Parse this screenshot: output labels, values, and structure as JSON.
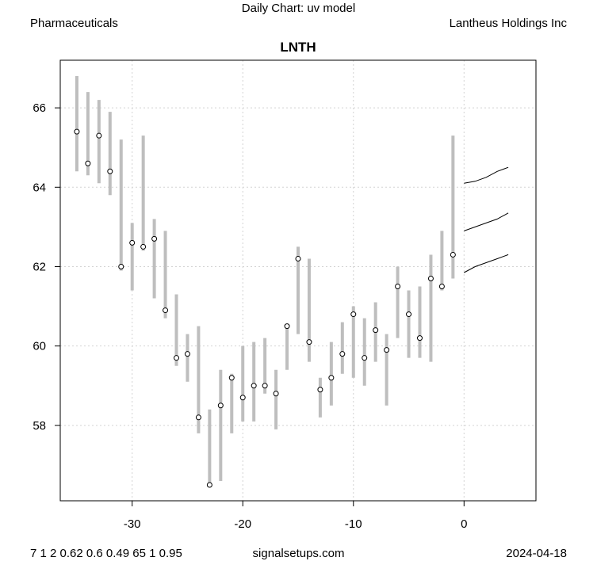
{
  "header": {
    "subtitle": "Daily Chart: uv model",
    "left_label": "Pharmaceuticals",
    "right_label": "Lantheus Holdings Inc"
  },
  "footer": {
    "params": "7 1 2 0.62 0.6 0.49 65 1 0.95",
    "site": "signalsetups.com",
    "date": "2024-04-18"
  },
  "chart_data": {
    "type": "range-dot",
    "title": "LNTH",
    "xlim": [
      -36.5,
      6.5
    ],
    "ylim": [
      56.1,
      67.2
    ],
    "x_ticks": [
      -30,
      -20,
      -10,
      0
    ],
    "y_ticks": [
      58,
      60,
      62,
      64,
      66
    ],
    "grid": true,
    "colors": {
      "range": "#bebebe",
      "point_fill": "#ffffff",
      "point_stroke": "#000000",
      "forecast": "#000000",
      "grid": "#d3d3d3"
    },
    "bars": [
      {
        "x": -35,
        "low": 64.4,
        "high": 66.8,
        "close": 65.4
      },
      {
        "x": -34,
        "low": 64.3,
        "high": 66.4,
        "close": 64.6
      },
      {
        "x": -33,
        "low": 64.1,
        "high": 66.2,
        "close": 65.3
      },
      {
        "x": -32,
        "low": 63.8,
        "high": 65.9,
        "close": 64.4
      },
      {
        "x": -31,
        "low": 61.9,
        "high": 65.2,
        "close": 62.0
      },
      {
        "x": -30,
        "low": 61.4,
        "high": 63.1,
        "close": 62.6
      },
      {
        "x": -29,
        "low": 62.4,
        "high": 65.3,
        "close": 62.5
      },
      {
        "x": -28,
        "low": 61.2,
        "high": 63.2,
        "close": 62.7
      },
      {
        "x": -27,
        "low": 60.7,
        "high": 62.9,
        "close": 60.9
      },
      {
        "x": -26,
        "low": 59.5,
        "high": 61.3,
        "close": 59.7
      },
      {
        "x": -25,
        "low": 59.1,
        "high": 60.3,
        "close": 59.8
      },
      {
        "x": -24,
        "low": 57.8,
        "high": 60.5,
        "close": 58.2
      },
      {
        "x": -23,
        "low": 56.5,
        "high": 58.4,
        "close": 56.5
      },
      {
        "x": -22,
        "low": 56.6,
        "high": 59.4,
        "close": 58.5
      },
      {
        "x": -21,
        "low": 57.8,
        "high": 59.3,
        "close": 59.2
      },
      {
        "x": -20,
        "low": 58.1,
        "high": 60.0,
        "close": 58.7
      },
      {
        "x": -19,
        "low": 58.1,
        "high": 60.1,
        "close": 59.0
      },
      {
        "x": -18,
        "low": 58.8,
        "high": 60.2,
        "close": 59.0
      },
      {
        "x": -17,
        "low": 57.9,
        "high": 59.4,
        "close": 58.8
      },
      {
        "x": -16,
        "low": 59.4,
        "high": 60.5,
        "close": 60.5
      },
      {
        "x": -15,
        "low": 60.3,
        "high": 62.5,
        "close": 62.2
      },
      {
        "x": -14,
        "low": 59.6,
        "high": 62.2,
        "close": 60.1
      },
      {
        "x": -13,
        "low": 58.2,
        "high": 59.2,
        "close": 58.9
      },
      {
        "x": -12,
        "low": 58.5,
        "high": 60.1,
        "close": 59.2
      },
      {
        "x": -11,
        "low": 59.3,
        "high": 60.6,
        "close": 59.8
      },
      {
        "x": -10,
        "low": 59.2,
        "high": 61.0,
        "close": 60.8
      },
      {
        "x": -9,
        "low": 59.0,
        "high": 60.7,
        "close": 59.7
      },
      {
        "x": -8,
        "low": 59.6,
        "high": 61.1,
        "close": 60.4
      },
      {
        "x": -7,
        "low": 58.5,
        "high": 60.3,
        "close": 59.9
      },
      {
        "x": -6,
        "low": 60.2,
        "high": 62.0,
        "close": 61.5
      },
      {
        "x": -5,
        "low": 59.7,
        "high": 61.4,
        "close": 60.8
      },
      {
        "x": -4,
        "low": 59.7,
        "high": 61.5,
        "close": 60.2
      },
      {
        "x": -3,
        "low": 59.6,
        "high": 62.3,
        "close": 61.7
      },
      {
        "x": -2,
        "low": 61.4,
        "high": 62.9,
        "close": 61.5
      },
      {
        "x": -1,
        "low": 61.7,
        "high": 65.3,
        "close": 62.3
      }
    ],
    "forecast": [
      {
        "name": "upper",
        "points": [
          [
            0,
            64.1
          ],
          [
            1,
            64.15
          ],
          [
            2,
            64.25
          ],
          [
            3,
            64.4
          ],
          [
            4,
            64.5
          ]
        ]
      },
      {
        "name": "mid",
        "points": [
          [
            0,
            62.9
          ],
          [
            1,
            63.0
          ],
          [
            2,
            63.1
          ],
          [
            3,
            63.2
          ],
          [
            4,
            63.35
          ]
        ]
      },
      {
        "name": "lower",
        "points": [
          [
            0,
            61.85
          ],
          [
            1,
            62.0
          ],
          [
            2,
            62.1
          ],
          [
            3,
            62.2
          ],
          [
            4,
            62.3
          ]
        ]
      }
    ]
  }
}
